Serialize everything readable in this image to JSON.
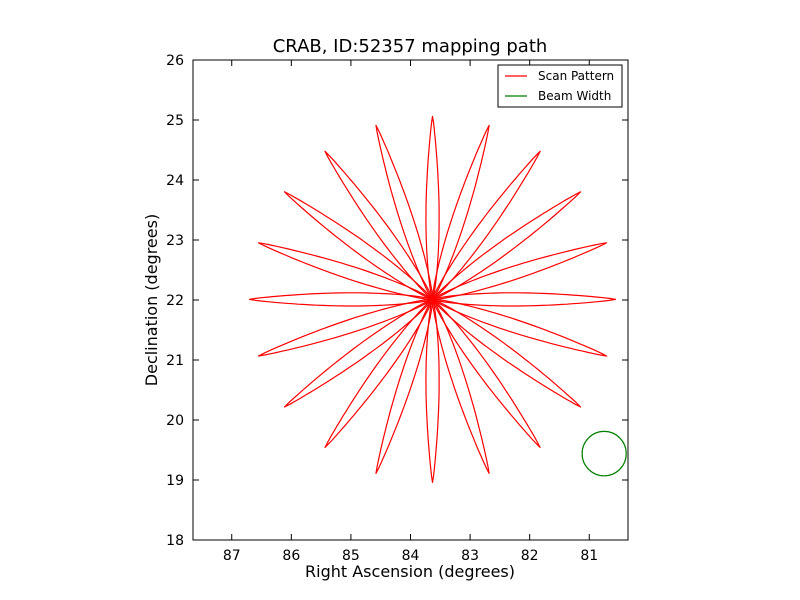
{
  "chart_data": {
    "type": "line",
    "title": "CRAB, ID:52357 mapping path",
    "xlabel": "Right Ascension (degrees)",
    "ylabel": "Declination (degrees)",
    "xlim": [
      87.65,
      80.35
    ],
    "ylim": [
      18,
      26
    ],
    "xticks": [
      87,
      86,
      85,
      84,
      83,
      82,
      81
    ],
    "yticks": [
      18,
      19,
      20,
      21,
      22,
      23,
      24,
      25,
      26
    ],
    "xtick_labels": [
      "87",
      "86",
      "85",
      "84",
      "83",
      "82",
      "81"
    ],
    "ytick_labels": [
      "18",
      "19",
      "20",
      "21",
      "22",
      "23",
      "24",
      "25",
      "26"
    ],
    "grid": false,
    "legend_position": "top-right",
    "legend": [
      "Scan Pattern",
      "Beam Width"
    ],
    "series": [
      {
        "name": "Scan Pattern",
        "kind": "rosette",
        "color": "#ff0000",
        "center": [
          83.63,
          22.01
        ],
        "radius_deg": 3.05,
        "petals": 20,
        "petal_half_width_deg": 0.11
      },
      {
        "name": "Beam Width",
        "kind": "circle",
        "color": "#008000",
        "center": [
          80.75,
          19.44
        ],
        "radius_deg": 0.37
      }
    ]
  }
}
